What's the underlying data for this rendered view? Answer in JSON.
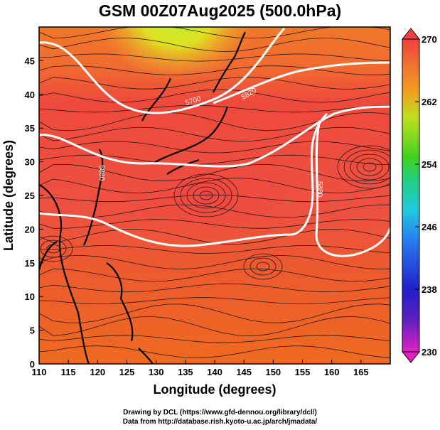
{
  "title": "GSM 00Z07Aug2025 (500.0hPa)",
  "credits": {
    "line1": "Drawing by DCL (https://www.gfd-dennou.org/library/dcl/)",
    "line2": "Data from http://database.rish.kyoto-u.ac.jp/arch/jmadata/"
  },
  "chart_data": {
    "type": "heatmap",
    "variable": "temperature with wind streamlines and geopotential height contours",
    "xlabel": "Longitude (degrees)",
    "ylabel": "Latitude (degrees)",
    "xlim": [
      110,
      170
    ],
    "ylim": [
      0,
      50
    ],
    "x_ticks": [
      110,
      115,
      120,
      125,
      130,
      135,
      140,
      145,
      150,
      155,
      160,
      165
    ],
    "y_ticks": [
      0,
      5,
      10,
      15,
      20,
      25,
      30,
      35,
      40,
      45
    ],
    "colorbar": {
      "range": [
        230,
        270
      ],
      "ticks": [
        230,
        238,
        246,
        254,
        262,
        270
      ]
    },
    "contours": [
      {
        "label": "5700",
        "level": 5700
      },
      {
        "label": "5820",
        "level": 5820
      },
      {
        "label": "5880",
        "level": 5880
      },
      {
        "label": "5880",
        "level": 5880
      }
    ]
  }
}
